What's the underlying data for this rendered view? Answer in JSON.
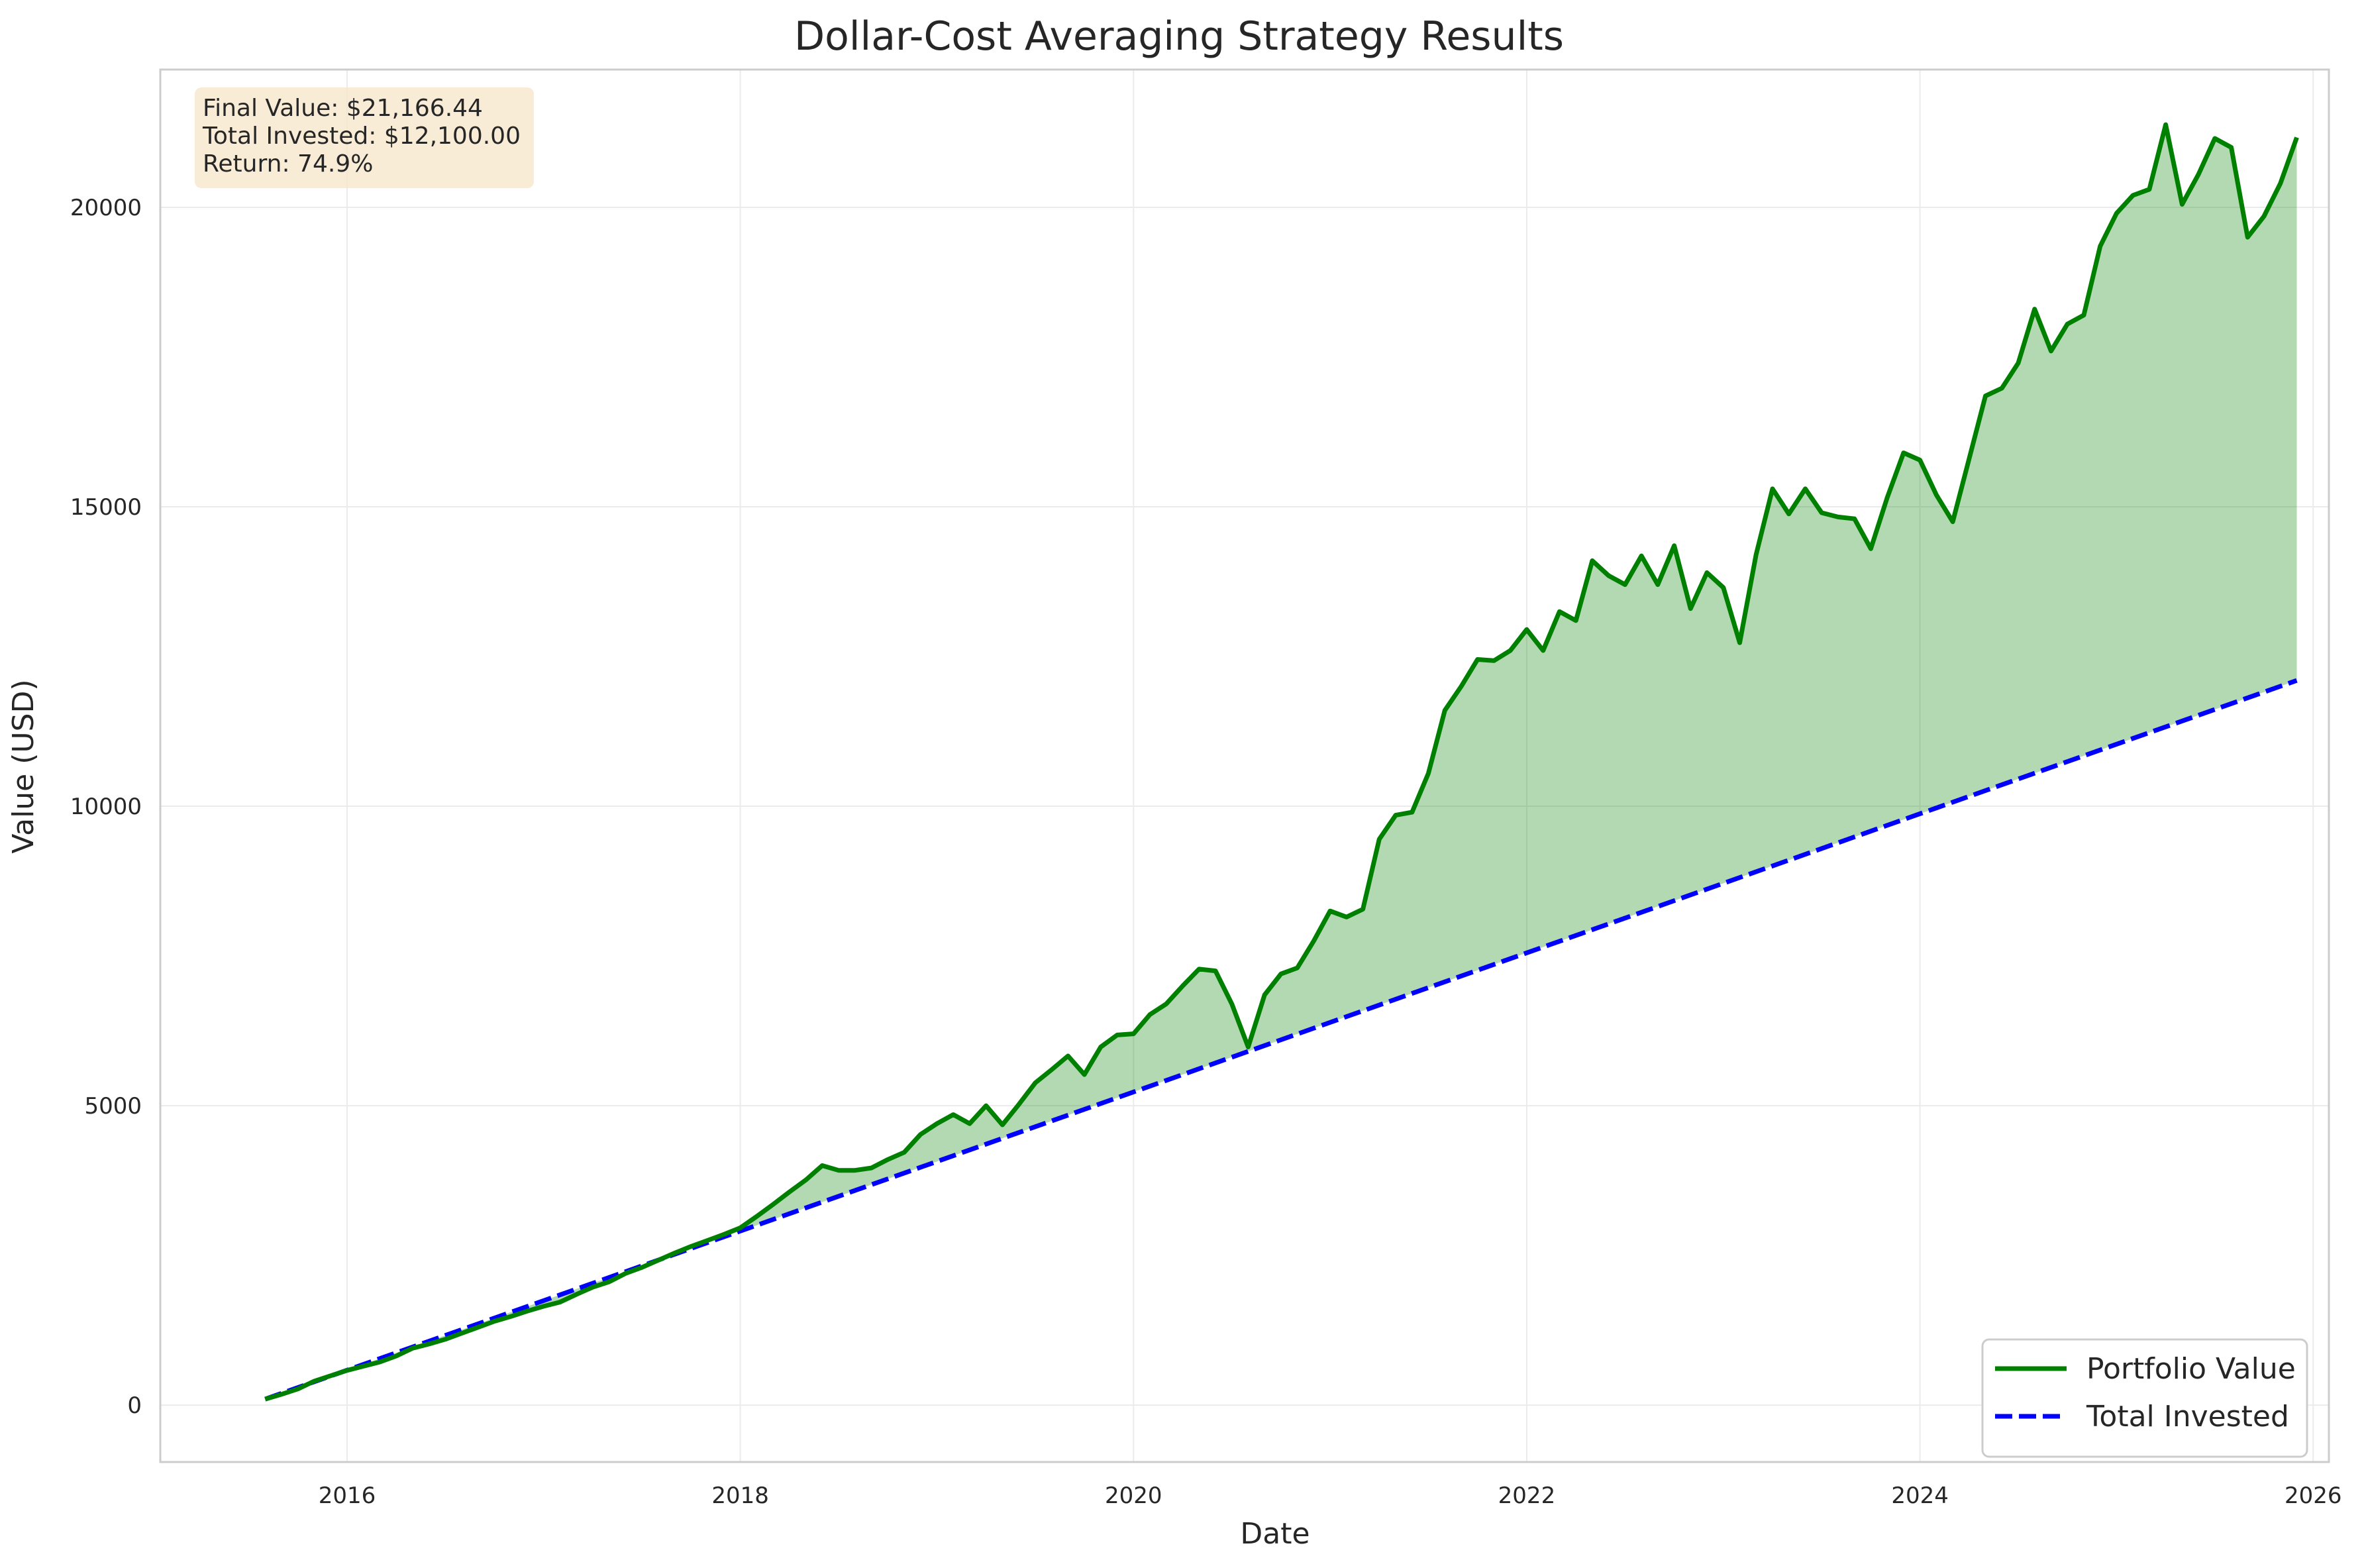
{
  "chart_data": {
    "type": "line",
    "title": "Dollar-Cost Averaging Strategy Results",
    "xlabel": "Date",
    "ylabel": "Value (USD)",
    "xlim": [
      2015.05,
      2026.08
    ],
    "ylim": [
      -950,
      22300
    ],
    "x_ticks": [
      2016,
      2018,
      2020,
      2022,
      2024,
      2026
    ],
    "x_tick_labels": [
      "2016",
      "2018",
      "2020",
      "2022",
      "2024",
      "2026"
    ],
    "y_ticks": [
      0,
      5000,
      10000,
      15000,
      20000
    ],
    "y_tick_labels": [
      "0",
      "5000",
      "10000",
      "15000",
      "20000"
    ],
    "grid": true,
    "legend_position": "lower-right",
    "x_start": "2015-08",
    "x_step_months": 1,
    "series": [
      {
        "name": "Portfolio Value",
        "color": "#008000",
        "style": "solid",
        "values": [
          100,
          180,
          270,
          400,
          490,
          580,
          650,
          720,
          820,
          950,
          1020,
          1100,
          1200,
          1300,
          1400,
          1480,
          1570,
          1650,
          1720,
          1850,
          1970,
          2060,
          2200,
          2300,
          2420,
          2540,
          2650,
          2750,
          2850,
          2960,
          3150,
          3350,
          3560,
          3760,
          4000,
          3920,
          3920,
          3960,
          4100,
          4220,
          4520,
          4700,
          4850,
          4700,
          5000,
          4680,
          5020,
          5380,
          5600,
          5830,
          5520,
          5980,
          6180,
          6200,
          6520,
          6700,
          7000,
          7280,
          7250,
          6700,
          5980,
          6850,
          7200,
          7300,
          7750,
          8250,
          8150,
          8280,
          9450,
          9850,
          9900,
          10550,
          11600,
          12000,
          12450,
          12430,
          12600,
          12950,
          12600,
          13250,
          13100,
          14100,
          13850,
          13700,
          14180,
          13700,
          14350,
          13300,
          13900,
          13650,
          12730,
          14200,
          15300,
          14880,
          15300,
          14900,
          14830,
          14800,
          14300,
          15150,
          15900,
          15780,
          15200,
          14750,
          15800,
          16850,
          16980,
          17400,
          18300,
          17600,
          18050,
          18200,
          19350,
          19900,
          20200,
          20300,
          21380,
          20050,
          20550,
          21150,
          21000,
          19500,
          19850,
          20400,
          21166.44
        ],
        "fill_color": "#008000"
      },
      {
        "name": "Total Invested",
        "color": "#0000ff",
        "style": "dashed",
        "values": [
          100,
          12100
        ]
      }
    ],
    "stats_box": {
      "lines": [
        "Final Value: $21,166.44",
        "Total Invested: $12,100.00",
        "Return: 74.9%"
      ],
      "background": "#f5e6c8"
    },
    "background": "#ffffff",
    "grid_color": "#ebebeb",
    "spine_color": "#cccccc"
  }
}
